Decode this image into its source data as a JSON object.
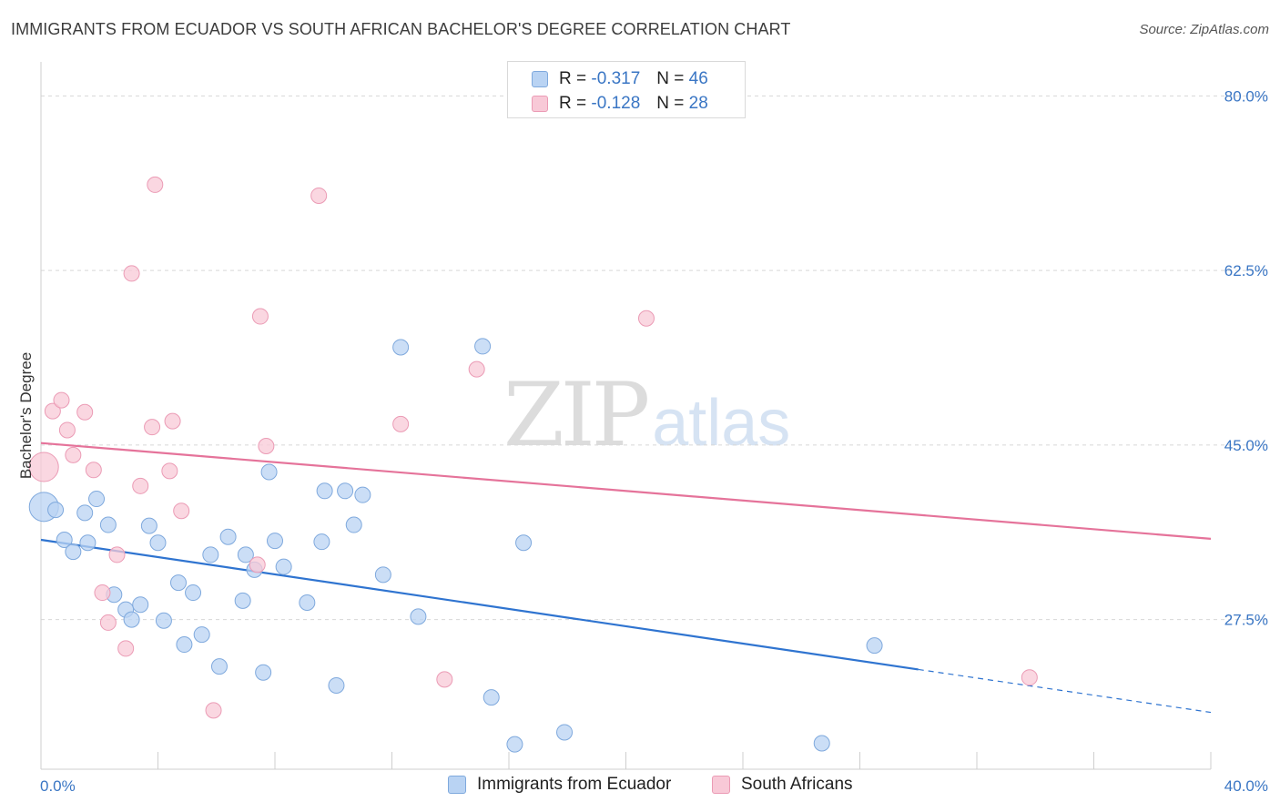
{
  "header": {
    "title": "IMMIGRANTS FROM ECUADOR VS SOUTH AFRICAN BACHELOR'S DEGREE CORRELATION CHART",
    "source": "Source: ZipAtlas.com"
  },
  "watermark": {
    "zip": "ZIP",
    "atlas": "atlas"
  },
  "colors": {
    "blue_fill": "#b9d3f3",
    "blue_stroke": "#7fa9dd",
    "blue_line": "#2f74d0",
    "pink_fill": "#f8c9d7",
    "pink_stroke": "#eb9bb5",
    "pink_line": "#e5739a",
    "tick_text": "#3a76c4",
    "grid": "#d8d8d8"
  },
  "legend": {
    "rows": [
      {
        "r_label": "R = ",
        "r_value": "-0.317",
        "n_label": "N = ",
        "n_value": "46"
      },
      {
        "r_label": "R = ",
        "r_value": "-0.128",
        "n_label": "N = ",
        "n_value": "28"
      }
    ]
  },
  "chart_data": {
    "type": "scatter",
    "title": "IMMIGRANTS FROM ECUADOR VS SOUTH AFRICAN BACHELOR'S DEGREE CORRELATION CHART",
    "xlabel": "",
    "ylabel": "Bachelor's Degree",
    "xlim": [
      0,
      40
    ],
    "ylim": [
      12.5,
      82.5
    ],
    "x_tick_labels": [
      "0.0%",
      "40.0%"
    ],
    "y_ticks": [
      27.5,
      45.0,
      62.5,
      80.0
    ],
    "y_tick_labels": [
      "27.5%",
      "45.0%",
      "62.5%",
      "80.0%"
    ],
    "grid": "horizontal dashed",
    "legend_position": "bottom",
    "series": [
      {
        "name": "Immigrants from Ecuador",
        "color": "#b9d3f3",
        "points": [
          [
            0.1,
            38.8
          ],
          [
            0.5,
            38.5
          ],
          [
            0.8,
            35.5
          ],
          [
            1.1,
            34.3
          ],
          [
            1.5,
            38.2
          ],
          [
            1.6,
            35.2
          ],
          [
            1.9,
            39.6
          ],
          [
            2.3,
            37.0
          ],
          [
            2.5,
            30.0
          ],
          [
            2.9,
            28.5
          ],
          [
            3.1,
            27.5
          ],
          [
            3.4,
            29.0
          ],
          [
            3.7,
            36.9
          ],
          [
            4.0,
            35.2
          ],
          [
            4.2,
            27.4
          ],
          [
            4.7,
            31.2
          ],
          [
            4.9,
            25.0
          ],
          [
            5.2,
            30.2
          ],
          [
            5.5,
            26.0
          ],
          [
            5.8,
            34.0
          ],
          [
            6.1,
            22.8
          ],
          [
            6.4,
            35.8
          ],
          [
            6.9,
            29.4
          ],
          [
            7.0,
            34.0
          ],
          [
            7.3,
            32.5
          ],
          [
            7.6,
            22.2
          ],
          [
            7.8,
            42.3
          ],
          [
            8.0,
            35.4
          ],
          [
            8.3,
            32.8
          ],
          [
            9.1,
            29.2
          ],
          [
            9.6,
            35.3
          ],
          [
            9.7,
            40.4
          ],
          [
            10.1,
            20.9
          ],
          [
            10.4,
            40.4
          ],
          [
            10.7,
            37.0
          ],
          [
            11.0,
            40.0
          ],
          [
            11.7,
            32.0
          ],
          [
            12.3,
            54.8
          ],
          [
            12.9,
            27.8
          ],
          [
            15.1,
            54.9
          ],
          [
            15.4,
            19.7
          ],
          [
            16.2,
            15.0
          ],
          [
            16.5,
            35.2
          ],
          [
            17.9,
            16.2
          ],
          [
            26.7,
            15.1
          ],
          [
            28.5,
            24.9
          ]
        ]
      },
      {
        "name": "South Africans",
        "color": "#f8c9d7",
        "points": [
          [
            0.1,
            42.8
          ],
          [
            0.4,
            48.4
          ],
          [
            0.7,
            49.5
          ],
          [
            0.9,
            46.5
          ],
          [
            1.1,
            44.0
          ],
          [
            1.5,
            48.3
          ],
          [
            1.8,
            42.5
          ],
          [
            2.1,
            30.2
          ],
          [
            2.3,
            27.2
          ],
          [
            2.6,
            34.0
          ],
          [
            2.9,
            24.6
          ],
          [
            3.1,
            62.2
          ],
          [
            3.4,
            40.9
          ],
          [
            3.8,
            46.8
          ],
          [
            3.9,
            71.1
          ],
          [
            4.4,
            42.4
          ],
          [
            4.5,
            47.4
          ],
          [
            4.8,
            38.4
          ],
          [
            5.9,
            18.4
          ],
          [
            7.4,
            33.0
          ],
          [
            7.5,
            57.9
          ],
          [
            7.7,
            44.9
          ],
          [
            9.5,
            70.0
          ],
          [
            12.3,
            47.1
          ],
          [
            13.8,
            21.5
          ],
          [
            14.9,
            52.6
          ],
          [
            20.7,
            57.7
          ],
          [
            33.8,
            21.7
          ]
        ]
      }
    ],
    "trendlines": [
      {
        "series": "Immigrants from Ecuador",
        "x0": 0,
        "y0": 35.5,
        "x1": 30,
        "y1": 22.5,
        "dash_from": 30,
        "x_end": 40,
        "y_end": 18.2
      },
      {
        "series": "South Africans",
        "x0": 0,
        "y0": 45.2,
        "x1": 40,
        "y1": 35.6
      }
    ]
  }
}
